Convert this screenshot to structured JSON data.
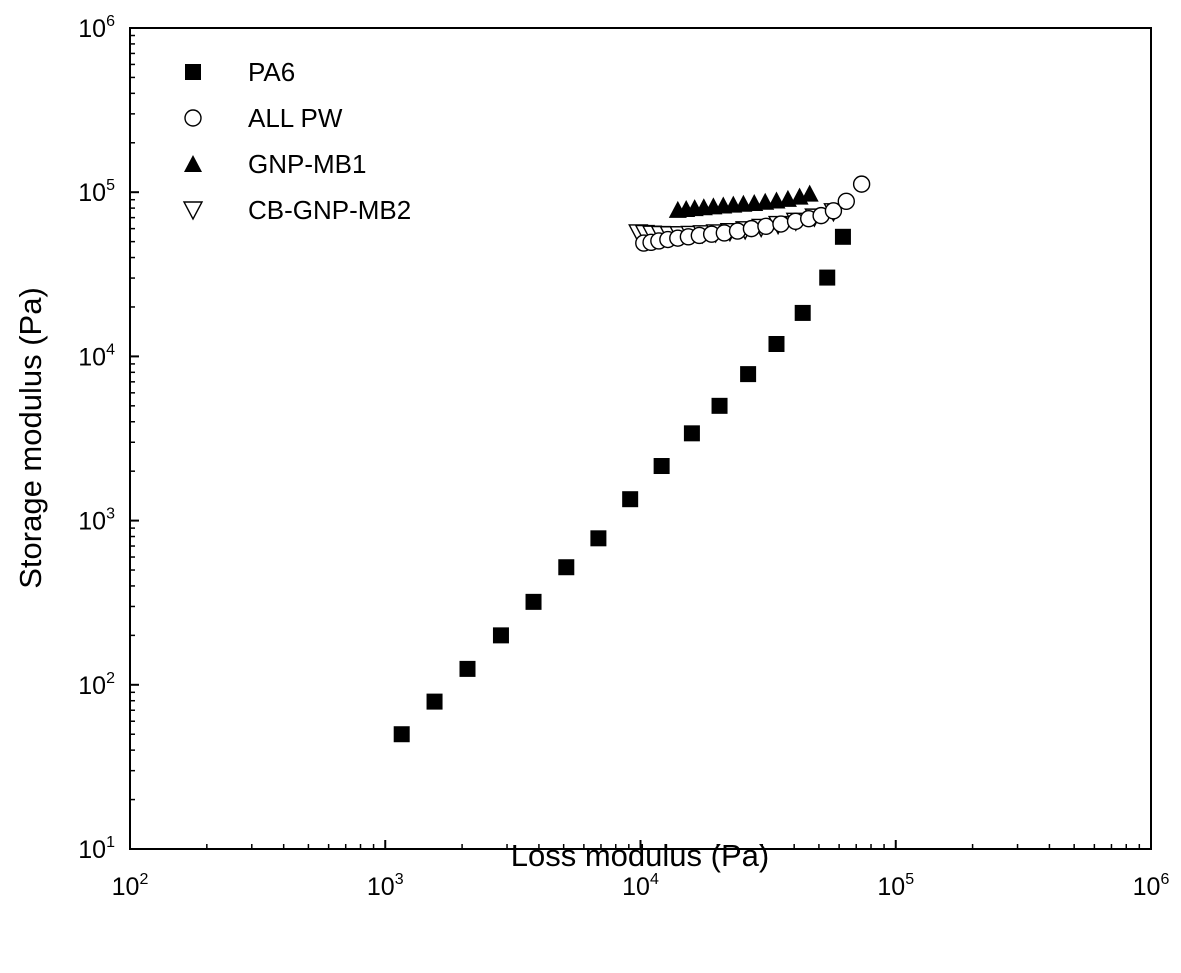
{
  "chart_data": {
    "type": "scatter",
    "title": "",
    "xlabel": "Loss modulus (Pa)",
    "ylabel": "Storage modulus (Pa)",
    "x_scale": "log",
    "y_scale": "log",
    "xlim": [
      100,
      1000000
    ],
    "ylim": [
      10,
      1000000
    ],
    "x_ticks": [
      100,
      1000,
      10000,
      100000,
      1000000
    ],
    "y_ticks": [
      10,
      100,
      1000,
      10000,
      100000,
      1000000
    ],
    "x_tick_labels": [
      {
        "base": "10",
        "exp": "2"
      },
      {
        "base": "10",
        "exp": "3"
      },
      {
        "base": "10",
        "exp": "4"
      },
      {
        "base": "10",
        "exp": "5"
      },
      {
        "base": "10",
        "exp": "6"
      }
    ],
    "y_tick_labels": [
      {
        "base": "10",
        "exp": "1"
      },
      {
        "base": "10",
        "exp": "2"
      },
      {
        "base": "10",
        "exp": "3"
      },
      {
        "base": "10",
        "exp": "4"
      },
      {
        "base": "10",
        "exp": "5"
      },
      {
        "base": "10",
        "exp": "6"
      }
    ],
    "grid": false,
    "legend_position": "top-left",
    "series": [
      {
        "name": "PA6",
        "marker": "square-filled",
        "x": [
          1160,
          1560,
          2100,
          2840,
          3810,
          5120,
          6840,
          9110,
          12100,
          15900,
          20400,
          26400,
          34100,
          43200,
          53900,
          62100
        ],
        "y": [
          50,
          79,
          125,
          200,
          320,
          520,
          780,
          1350,
          2150,
          3400,
          5000,
          7800,
          11900,
          18400,
          30200,
          53500
        ]
      },
      {
        "name": "ALL PW",
        "marker": "circle-open",
        "x": [
          10300,
          11000,
          11800,
          12800,
          14000,
          15400,
          17000,
          19000,
          21300,
          24000,
          27200,
          31000,
          35500,
          40500,
          45600,
          51000,
          57000,
          64000,
          73500
        ],
        "y": [
          49000,
          49500,
          50500,
          51500,
          52500,
          53500,
          54500,
          55500,
          56500,
          58000,
          60000,
          62000,
          64000,
          66500,
          69000,
          72000,
          77000,
          88000,
          112000
        ]
      },
      {
        "name": "GNP-MB1",
        "marker": "triangle-up-filled",
        "x": [
          14000,
          15100,
          16300,
          17700,
          19300,
          21100,
          23100,
          25300,
          27900,
          30800,
          34100,
          37800,
          42000,
          46000
        ],
        "y": [
          78000,
          79000,
          80000,
          81000,
          82000,
          83000,
          84000,
          85000,
          86000,
          87500,
          89000,
          91000,
          94000,
          98000
        ]
      },
      {
        "name": "CB-GNP-MB2",
        "marker": "triangle-down-open",
        "x": [
          9800,
          10400,
          11100,
          12000,
          13000,
          14200,
          15700,
          17500,
          19700,
          22400,
          25700,
          29700,
          34600,
          40600,
          48000,
          57000
        ],
        "y": [
          56500,
          56000,
          55500,
          55200,
          55000,
          55000,
          55300,
          55800,
          56500,
          57500,
          59000,
          61000,
          63500,
          66500,
          70500,
          76000
        ]
      }
    ]
  }
}
